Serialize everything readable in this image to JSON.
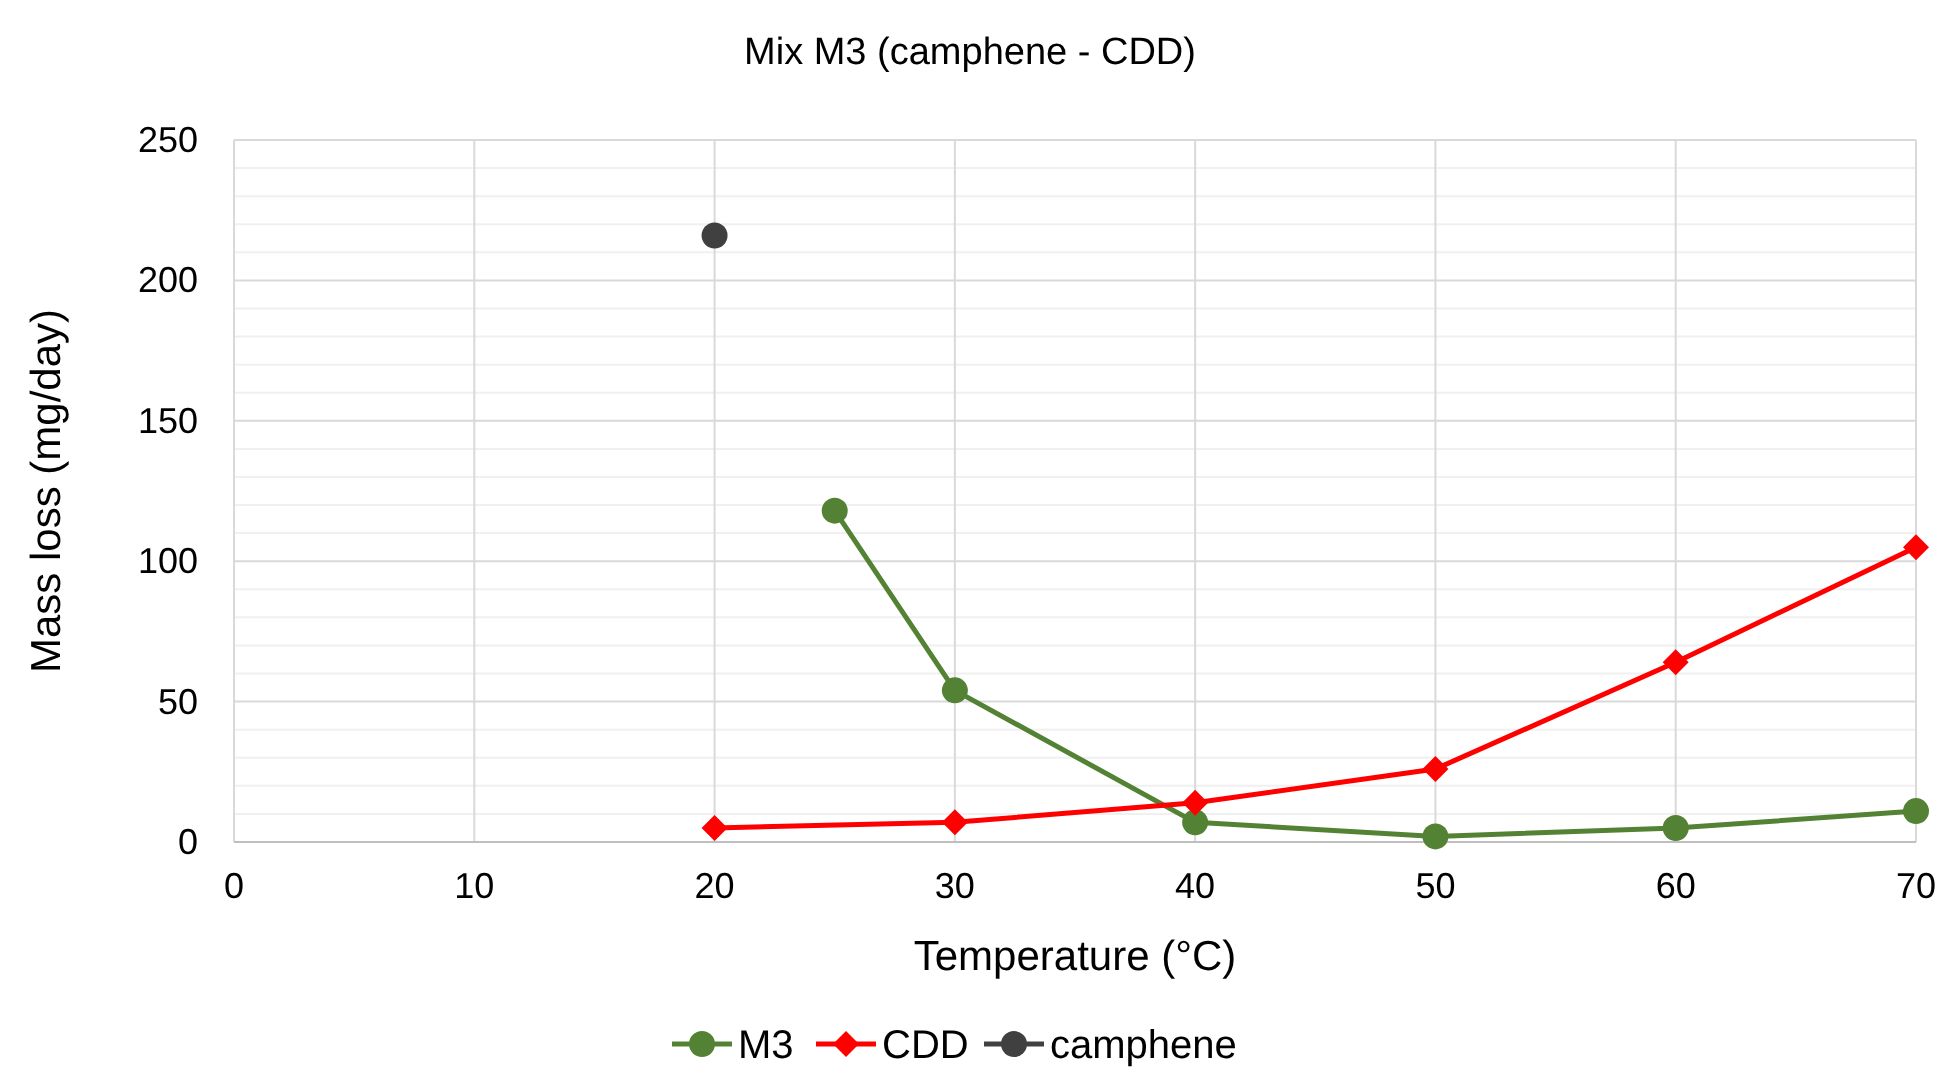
{
  "chart_data": {
    "type": "line",
    "title": "Mix M3 (camphene - CDD)",
    "xlabel": "Temperature (°C)",
    "ylabel": "Mass loss (mg/day)",
    "xlim": [
      0,
      70
    ],
    "xticks": [
      0,
      10,
      20,
      30,
      40,
      50,
      60,
      70
    ],
    "ylim": [
      0,
      250
    ],
    "yticks": [
      0,
      50,
      100,
      150,
      200,
      250
    ],
    "grid": true,
    "legend": "bottom",
    "series": [
      {
        "name": "M3",
        "color": "#548235",
        "marker": "circle",
        "x": [
          25,
          30,
          40,
          50,
          60,
          70
        ],
        "values": [
          118,
          54,
          7,
          2,
          5,
          11
        ]
      },
      {
        "name": "CDD",
        "color": "#ff0000",
        "marker": "diamond",
        "x": [
          20,
          30,
          40,
          50,
          60,
          70
        ],
        "values": [
          5,
          7,
          14,
          26,
          64,
          105
        ]
      },
      {
        "name": "camphene",
        "color": "#404040",
        "marker": "circle",
        "x": [
          20
        ],
        "values": [
          216
        ]
      }
    ]
  }
}
